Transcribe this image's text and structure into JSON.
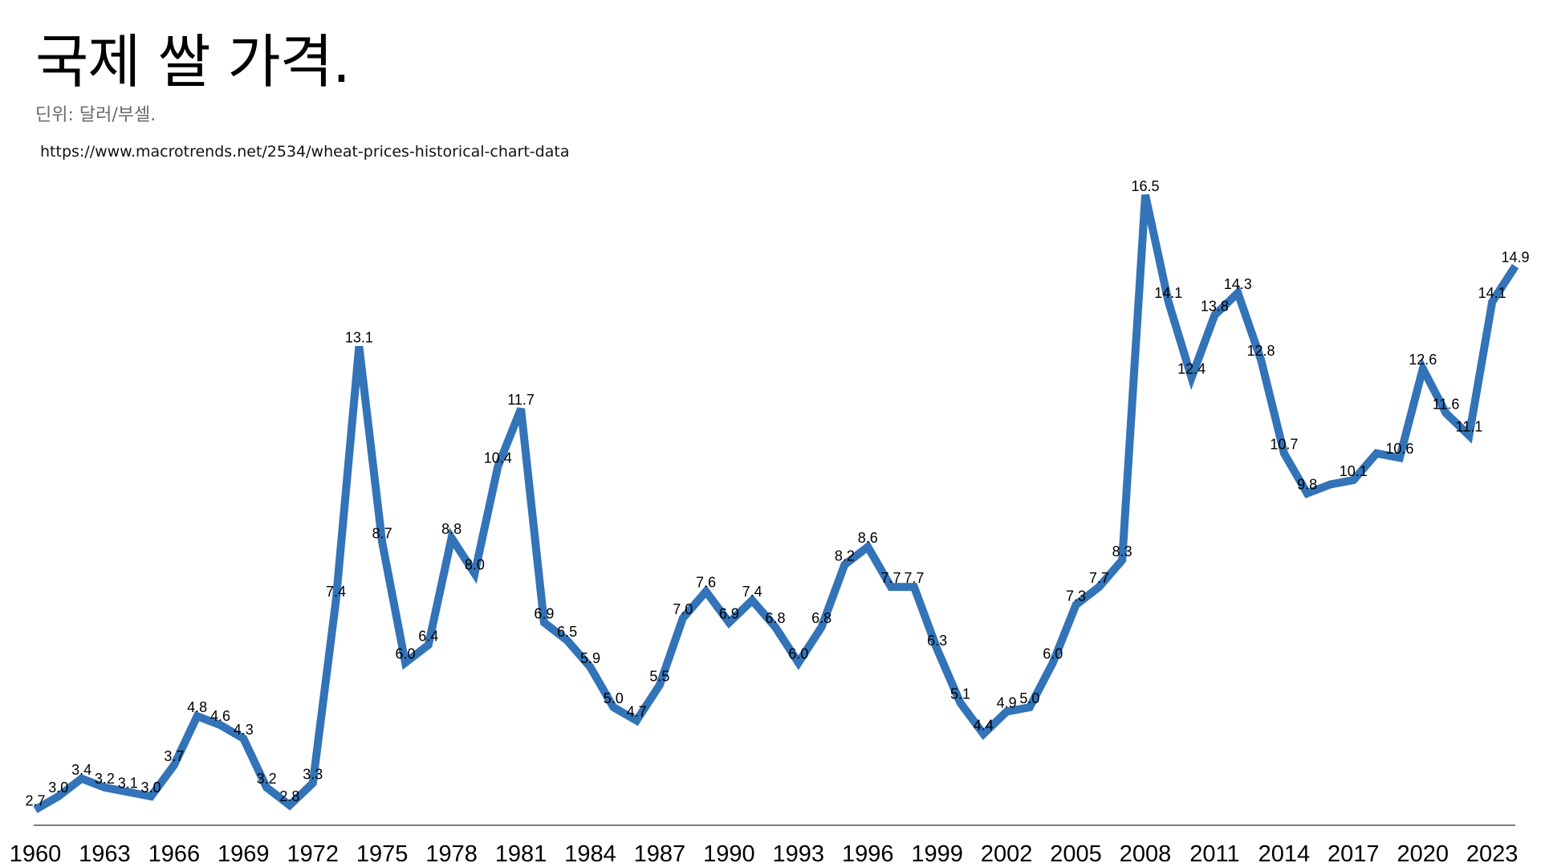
{
  "header": {
    "title": "국제 쌀 가격.",
    "subtitle": "딘위: 달러/부셀.",
    "source": "https://www.macrotrends.net/2534/wheat-prices-historical-chart-data"
  },
  "colors": {
    "line": "#3373b8",
    "axis": "#555555"
  },
  "chart_data": {
    "type": "line",
    "title": "국제 쌀 가격.",
    "subtitle": "딘위: 달러/부셀.",
    "xlabel": "",
    "ylabel": "",
    "grid": false,
    "legend": "none",
    "x": [
      1960,
      1961,
      1962,
      1963,
      1964,
      1965,
      1966,
      1967,
      1968,
      1969,
      1970,
      1971,
      1972,
      1973,
      1974,
      1975,
      1976,
      1977,
      1978,
      1979,
      1980,
      1981,
      1982,
      1983,
      1984,
      1985,
      1986,
      1987,
      1988,
      1989,
      1990,
      1991,
      1992,
      1993,
      1994,
      1995,
      1996,
      1997,
      1998,
      1999,
      2000,
      2001,
      2002,
      2003,
      2004,
      2005,
      2006,
      2007,
      2008,
      2009,
      2010,
      2011,
      2012,
      2013,
      2014,
      2015,
      2016,
      2017,
      2018,
      2019,
      2020,
      2021,
      2022,
      2023,
      2024
    ],
    "tick_years": [
      1960,
      1963,
      1966,
      1969,
      1972,
      1975,
      1978,
      1981,
      1984,
      1987,
      1990,
      1993,
      1996,
      1999,
      2002,
      2005,
      2008,
      2011,
      2014,
      2017,
      2020,
      2023
    ],
    "series": [
      {
        "values": [
          2.7,
          3.0,
          3.4,
          3.2,
          3.1,
          3.0,
          3.7,
          4.8,
          4.6,
          4.3,
          3.2,
          2.8,
          3.3,
          7.4,
          13.1,
          8.7,
          6.0,
          6.4,
          8.8,
          8.0,
          10.4,
          11.7,
          6.9,
          6.5,
          5.9,
          5.0,
          4.7,
          5.5,
          7.0,
          7.6,
          6.9,
          7.4,
          6.8,
          6.0,
          6.8,
          8.2,
          8.6,
          7.7,
          7.7,
          6.3,
          5.1,
          4.4,
          4.9,
          5.0,
          6.0,
          7.3,
          7.7,
          8.3,
          16.5,
          14.1,
          12.4,
          13.8,
          14.3,
          12.8,
          10.7,
          9.8,
          10.0,
          10.1,
          10.7,
          10.6,
          12.6,
          11.6,
          11.1,
          14.1,
          14.9
        ],
        "labels": [
          "2.7",
          "3.0",
          "3.4",
          "3.2",
          "3.1",
          "3.0",
          "3.7",
          "4.8",
          "4.6",
          "4.3",
          "3.2",
          "2.8",
          "3.3",
          "7.4",
          "13.1",
          "8.7",
          "6.0",
          "6.4",
          "8.8",
          "8.0",
          "10.4",
          "11.7",
          "6.9",
          "6.5",
          "5.9",
          "5.0",
          "4.7",
          "5.5",
          "7.0",
          "7.6",
          "6.9",
          "7.4",
          "6.8",
          "6.0",
          "6.8",
          "8.2",
          "8.6",
          "7.7",
          "7.7",
          "6.3",
          "5.1",
          "4.4",
          "4.9",
          "5.0",
          "6.0",
          "7.3",
          "7.7",
          "8.3",
          "16.5",
          "14.1",
          "12.4",
          "13.8",
          "14.3",
          "12.8",
          "10.7",
          "9.8",
          "",
          "10.1",
          "",
          "10.6",
          "12.6",
          "11.6",
          "11.1",
          "14.1",
          "14.9"
        ]
      }
    ]
  }
}
